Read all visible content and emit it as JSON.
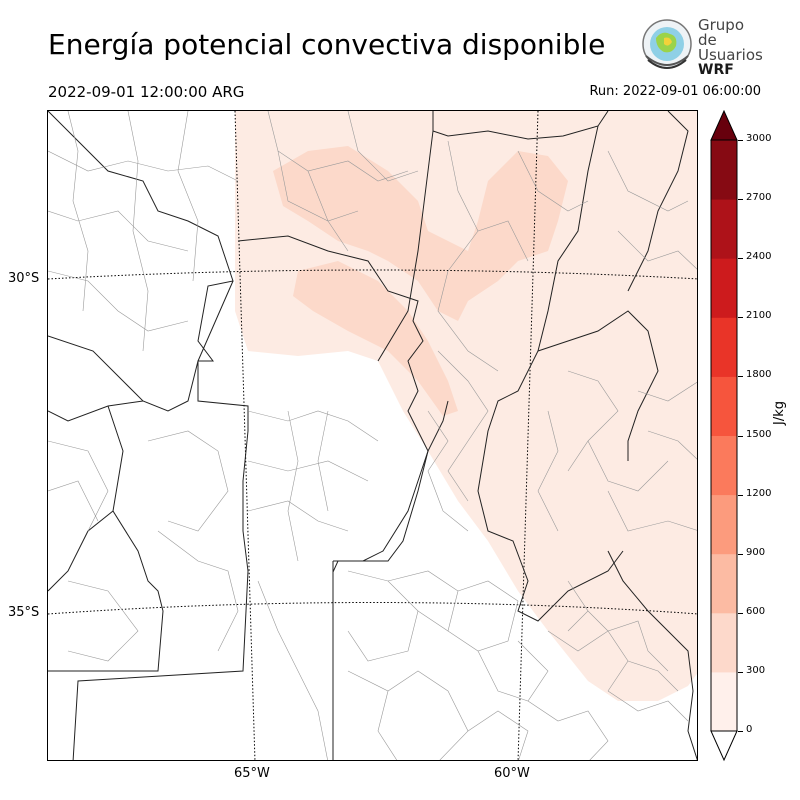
{
  "title": "Energía potencial convectiva disponible",
  "valid_time": "2022-09-01 12:00:00 ARG",
  "run_time": "Run: 2022-09-01 06:00:00",
  "logo": {
    "line1": "Grupo de",
    "line2": "Usuarios",
    "line3": "WRF"
  },
  "latitudes": [
    "30°S",
    "35°S"
  ],
  "longitudes": [
    "65°W",
    "60°W"
  ],
  "colorbar": {
    "units": "J/kg",
    "ticks": [
      "0",
      "300",
      "600",
      "900",
      "1200",
      "1500",
      "1800",
      "2100",
      "2400",
      "2700",
      "3000"
    ],
    "colors": [
      "#fff0eb",
      "#fdd9cb",
      "#fcbba3",
      "#fc9b7d",
      "#fb7a5c",
      "#f6553d",
      "#e93428",
      "#cd1b1d",
      "#ae1219",
      "#860a13"
    ],
    "under_color": "#ffffff",
    "over_color": "#67000d"
  },
  "field_colors": {
    "light": "#fdebe3",
    "medium": "#fcd9ca"
  }
}
